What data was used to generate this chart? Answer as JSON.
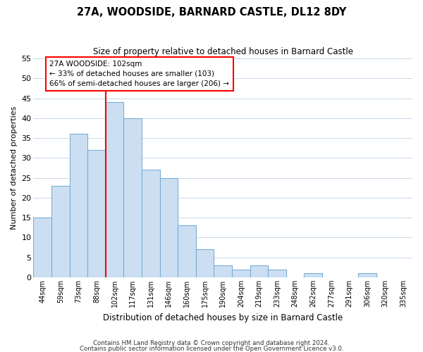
{
  "title": "27A, WOODSIDE, BARNARD CASTLE, DL12 8DY",
  "subtitle": "Size of property relative to detached houses in Barnard Castle",
  "xlabel": "Distribution of detached houses by size in Barnard Castle",
  "ylabel": "Number of detached properties",
  "bar_color": "#ccdff2",
  "bar_edgecolor": "#7aadd4",
  "categories": [
    "44sqm",
    "59sqm",
    "73sqm",
    "88sqm",
    "102sqm",
    "117sqm",
    "131sqm",
    "146sqm",
    "160sqm",
    "175sqm",
    "190sqm",
    "204sqm",
    "219sqm",
    "233sqm",
    "248sqm",
    "262sqm",
    "277sqm",
    "291sqm",
    "306sqm",
    "320sqm",
    "335sqm"
  ],
  "values": [
    15,
    23,
    36,
    32,
    44,
    40,
    27,
    25,
    13,
    7,
    3,
    2,
    3,
    2,
    0,
    1,
    0,
    0,
    1,
    0,
    0
  ],
  "ylim": [
    0,
    55
  ],
  "yticks": [
    0,
    5,
    10,
    15,
    20,
    25,
    30,
    35,
    40,
    45,
    50,
    55
  ],
  "red_line_index": 4,
  "annotation_title": "27A WOODSIDE: 102sqm",
  "annotation_line1": "← 33% of detached houses are smaller (103)",
  "annotation_line2": "66% of semi-detached houses are larger (206) →",
  "footer1": "Contains HM Land Registry data © Crown copyright and database right 2024.",
  "footer2": "Contains public sector information licensed under the Open Government Licence v3.0.",
  "background_color": "#ffffff",
  "grid_color": "#c8d8e8"
}
